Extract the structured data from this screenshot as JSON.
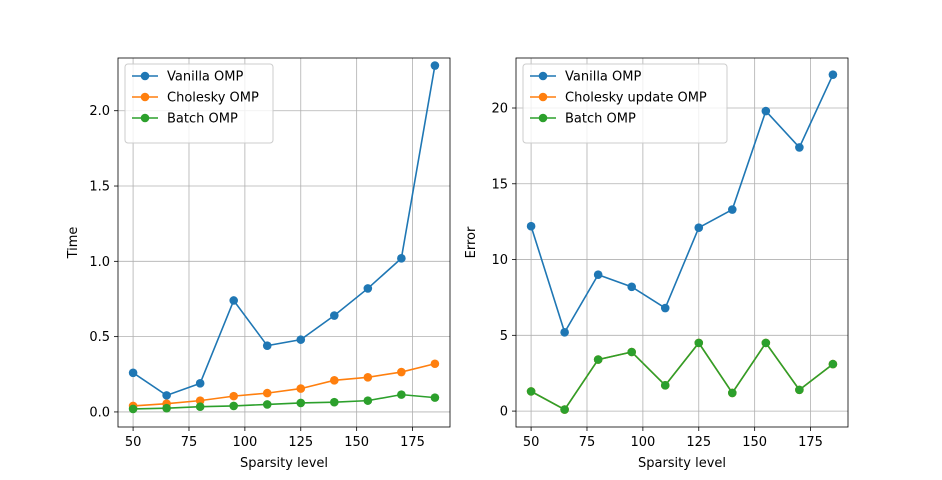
{
  "chart_data": [
    {
      "type": "line",
      "xlabel": "Sparsity level",
      "ylabel": "Time",
      "grid": true,
      "legend": "top-left",
      "xlim": [
        43.25,
        191.75
      ],
      "ylim": [
        -0.1,
        2.35
      ],
      "xticks": [
        50,
        75,
        100,
        125,
        150,
        175
      ],
      "yticks": [
        0.0,
        0.5,
        1.0,
        1.5,
        2.0
      ],
      "ytick_labels": [
        "0.0",
        "0.5",
        "1.0",
        "1.5",
        "2.0"
      ],
      "x": [
        50,
        65,
        80,
        95,
        110,
        125,
        140,
        155,
        170,
        185
      ],
      "series": [
        {
          "name": "Vanilla OMP",
          "color": "#1f77b4",
          "values": [
            0.26,
            0.11,
            0.19,
            0.74,
            0.44,
            0.48,
            0.64,
            0.82,
            1.02,
            2.3
          ]
        },
        {
          "name": "Cholesky OMP",
          "color": "#ff7f0e",
          "values": [
            0.04,
            0.055,
            0.075,
            0.105,
            0.125,
            0.155,
            0.21,
            0.23,
            0.265,
            0.32
          ]
        },
        {
          "name": "Batch OMP",
          "color": "#2ca02c",
          "values": [
            0.02,
            0.025,
            0.035,
            0.04,
            0.05,
            0.06,
            0.065,
            0.075,
            0.115,
            0.095
          ]
        }
      ]
    },
    {
      "type": "line",
      "xlabel": "Sparsity level",
      "ylabel": "Error",
      "grid": true,
      "legend": "top-left",
      "xlim": [
        43.25,
        191.75
      ],
      "ylim": [
        -1.05,
        23.3
      ],
      "xticks": [
        50,
        75,
        100,
        125,
        150,
        175
      ],
      "yticks": [
        0,
        5,
        10,
        15,
        20
      ],
      "ytick_labels": [
        "0",
        "5",
        "10",
        "15",
        "20"
      ],
      "x": [
        50,
        65,
        80,
        95,
        110,
        125,
        140,
        155,
        170,
        185
      ],
      "series": [
        {
          "name": "Vanilla OMP",
          "color": "#1f77b4",
          "values": [
            12.2,
            5.2,
            9.0,
            8.2,
            6.8,
            12.1,
            13.3,
            19.8,
            17.4,
            22.2
          ]
        },
        {
          "name": "Cholesky update OMP",
          "color": "#ff7f0e",
          "values": [
            1.3,
            0.1,
            3.4,
            3.9,
            1.7,
            4.5,
            1.2,
            4.5,
            1.4,
            3.1
          ]
        },
        {
          "name": "Batch OMP",
          "color": "#2ca02c",
          "values": [
            1.3,
            0.1,
            3.4,
            3.9,
            1.7,
            4.5,
            1.2,
            4.5,
            1.4,
            3.1
          ]
        }
      ]
    }
  ]
}
